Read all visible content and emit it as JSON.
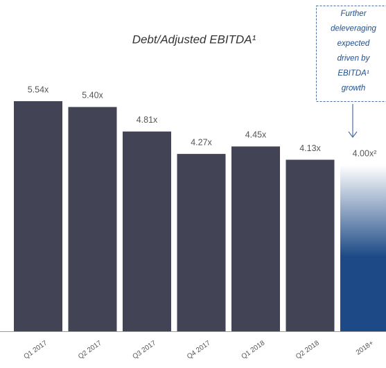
{
  "chart_data": {
    "type": "bar",
    "title": "Debt/Adjusted EBITDA¹",
    "categories": [
      "Q1 2017",
      "Q2 2017",
      "Q3 2017",
      "Q4 2017",
      "Q1 2018",
      "Q2 2018",
      "2018+"
    ],
    "values": [
      5.54,
      5.4,
      4.81,
      4.27,
      4.45,
      4.13,
      4.0
    ],
    "value_labels": [
      "5.54x",
      "5.40x",
      "4.81x",
      "4.27x",
      "4.45x",
      "4.13x",
      "4.00x²"
    ],
    "color": "#424354",
    "projected_color": "#1d4a86",
    "annotation": [
      "Further",
      "deleveraging",
      "expected",
      "driven by",
      "EBITDA¹",
      "growth"
    ]
  }
}
